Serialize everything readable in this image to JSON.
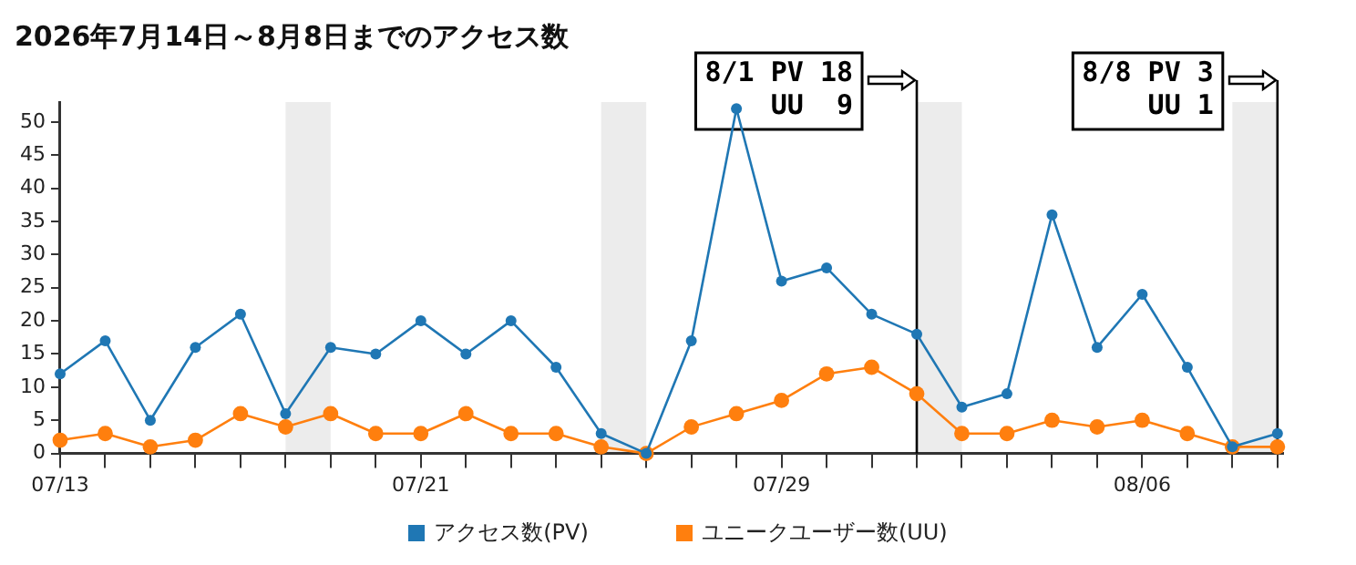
{
  "chart_data": {
    "type": "line",
    "title": "2026年7月14日～8月8日までのアクセス数",
    "x": [
      "2026-07-13",
      "2026-07-14",
      "2026-07-15",
      "2026-07-16",
      "2026-07-17",
      "2026-07-18",
      "2026-07-19",
      "2026-07-20",
      "2026-07-21",
      "2026-07-22",
      "2026-07-23",
      "2026-07-24",
      "2026-07-25",
      "2026-07-26",
      "2026-07-27",
      "2026-07-28",
      "2026-07-29",
      "2026-07-30",
      "2026-07-31",
      "2026-08-01",
      "2026-08-02",
      "2026-08-03",
      "2026-08-04",
      "2026-08-05",
      "2026-08-06",
      "2026-08-07",
      "2026-08-08",
      "2026-08-09"
    ],
    "series": [
      {
        "name": "アクセス数(PV)",
        "color": "#1f77b4",
        "values": [
          12,
          17,
          5,
          16,
          21,
          6,
          16,
          15,
          20,
          15,
          20,
          13,
          3,
          0,
          17,
          52,
          26,
          28,
          21,
          18,
          7,
          9,
          36,
          16,
          24,
          13,
          1,
          3
        ]
      },
      {
        "name": "ユニークユーザー数(UU)",
        "color": "#ff7f0e",
        "values": [
          2,
          3,
          1,
          2,
          6,
          4,
          6,
          3,
          3,
          6,
          3,
          3,
          1,
          0,
          4,
          6,
          8,
          12,
          13,
          9,
          3,
          3,
          5,
          4,
          5,
          3,
          1,
          1
        ]
      }
    ],
    "xlim": [
      "2026-07-13",
      "2026-08-09T03:00"
    ],
    "xticks": [
      {
        "value": "2026-07-13",
        "label": "07/13"
      },
      {
        "value": "2026-07-14",
        "label": null
      },
      {
        "value": "2026-07-15",
        "label": null
      },
      {
        "value": "2026-07-16",
        "label": null
      },
      {
        "value": "2026-07-17",
        "label": null
      },
      {
        "value": "2026-07-18",
        "label": null
      },
      {
        "value": "2026-07-19",
        "label": null
      },
      {
        "value": "2026-07-20",
        "label": null
      },
      {
        "value": "2026-07-21",
        "label": "07/21"
      },
      {
        "value": "2026-07-22",
        "label": null
      },
      {
        "value": "2026-07-23",
        "label": null
      },
      {
        "value": "2026-07-24",
        "label": null
      },
      {
        "value": "2026-07-25",
        "label": null
      },
      {
        "value": "2026-07-26",
        "label": null
      },
      {
        "value": "2026-07-27",
        "label": null
      },
      {
        "value": "2026-07-28",
        "label": null
      },
      {
        "value": "2026-07-29",
        "label": "07/29"
      },
      {
        "value": "2026-07-30",
        "label": null
      },
      {
        "value": "2026-07-31",
        "label": null
      },
      {
        "value": "2026-08-01",
        "label": null
      },
      {
        "value": "2026-08-02",
        "label": null
      },
      {
        "value": "2026-08-03",
        "label": null
      },
      {
        "value": "2026-08-04",
        "label": null
      },
      {
        "value": "2026-08-05",
        "label": null
      },
      {
        "value": "2026-08-06",
        "label": "08/06"
      },
      {
        "value": "2026-08-07",
        "label": null
      },
      {
        "value": "2026-08-08",
        "label": null
      },
      {
        "value": "2026-08-09",
        "label": null
      }
    ],
    "ylim": [
      0,
      53
    ],
    "yticks": [
      0,
      5,
      10,
      15,
      20,
      25,
      30,
      35,
      40,
      45,
      50
    ],
    "bands": [
      {
        "axis": "x",
        "from": "2026-07-18",
        "to": "2026-07-19",
        "color": "#ececec"
      },
      {
        "axis": "x",
        "from": "2026-07-25",
        "to": "2026-07-26",
        "color": "#ececec"
      },
      {
        "axis": "x",
        "from": "2026-08-01",
        "to": "2026-08-02",
        "color": "#ececec"
      },
      {
        "axis": "x",
        "from": "2026-08-08",
        "to": "2026-08-09",
        "color": "#ececec"
      }
    ],
    "ref_lines": [
      {
        "axis": "x",
        "value": "2026-08-01",
        "label": "8/1 PV 18\n    UU  9",
        "color": "#000000"
      },
      {
        "axis": "x",
        "value": "2026-08-09",
        "label": "8/8 PV 3\n    UU 1",
        "color": "#000000"
      }
    ],
    "grid": false,
    "legend": "bottom",
    "marker": "circle",
    "line_style": "solid"
  }
}
